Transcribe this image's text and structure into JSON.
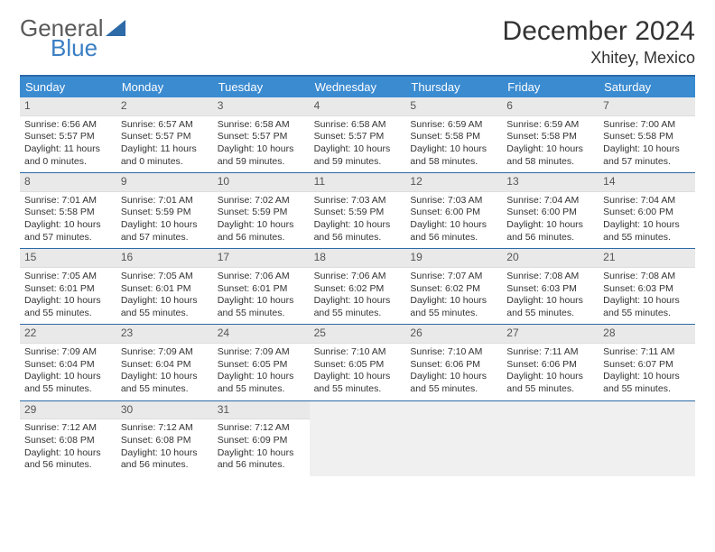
{
  "logo": {
    "text1": "General",
    "text2": "Blue"
  },
  "title": "December 2024",
  "subtitle": "Xhitey, Mexico",
  "dow": [
    "Sunday",
    "Monday",
    "Tuesday",
    "Wednesday",
    "Thursday",
    "Friday",
    "Saturday"
  ],
  "colors": {
    "header_bar": "#3b8bd1",
    "week_border": "#2d6aa8",
    "daynum_bg": "#e9e9e9",
    "logo_gray": "#5a5a5a",
    "logo_blue": "#3a7fc4"
  },
  "weeks": [
    [
      {
        "n": "1",
        "sr": "6:56 AM",
        "ss": "5:57 PM",
        "dl": "11 hours and 0 minutes."
      },
      {
        "n": "2",
        "sr": "6:57 AM",
        "ss": "5:57 PM",
        "dl": "11 hours and 0 minutes."
      },
      {
        "n": "3",
        "sr": "6:58 AM",
        "ss": "5:57 PM",
        "dl": "10 hours and 59 minutes."
      },
      {
        "n": "4",
        "sr": "6:58 AM",
        "ss": "5:57 PM",
        "dl": "10 hours and 59 minutes."
      },
      {
        "n": "5",
        "sr": "6:59 AM",
        "ss": "5:58 PM",
        "dl": "10 hours and 58 minutes."
      },
      {
        "n": "6",
        "sr": "6:59 AM",
        "ss": "5:58 PM",
        "dl": "10 hours and 58 minutes."
      },
      {
        "n": "7",
        "sr": "7:00 AM",
        "ss": "5:58 PM",
        "dl": "10 hours and 57 minutes."
      }
    ],
    [
      {
        "n": "8",
        "sr": "7:01 AM",
        "ss": "5:58 PM",
        "dl": "10 hours and 57 minutes."
      },
      {
        "n": "9",
        "sr": "7:01 AM",
        "ss": "5:59 PM",
        "dl": "10 hours and 57 minutes."
      },
      {
        "n": "10",
        "sr": "7:02 AM",
        "ss": "5:59 PM",
        "dl": "10 hours and 56 minutes."
      },
      {
        "n": "11",
        "sr": "7:03 AM",
        "ss": "5:59 PM",
        "dl": "10 hours and 56 minutes."
      },
      {
        "n": "12",
        "sr": "7:03 AM",
        "ss": "6:00 PM",
        "dl": "10 hours and 56 minutes."
      },
      {
        "n": "13",
        "sr": "7:04 AM",
        "ss": "6:00 PM",
        "dl": "10 hours and 56 minutes."
      },
      {
        "n": "14",
        "sr": "7:04 AM",
        "ss": "6:00 PM",
        "dl": "10 hours and 55 minutes."
      }
    ],
    [
      {
        "n": "15",
        "sr": "7:05 AM",
        "ss": "6:01 PM",
        "dl": "10 hours and 55 minutes."
      },
      {
        "n": "16",
        "sr": "7:05 AM",
        "ss": "6:01 PM",
        "dl": "10 hours and 55 minutes."
      },
      {
        "n": "17",
        "sr": "7:06 AM",
        "ss": "6:01 PM",
        "dl": "10 hours and 55 minutes."
      },
      {
        "n": "18",
        "sr": "7:06 AM",
        "ss": "6:02 PM",
        "dl": "10 hours and 55 minutes."
      },
      {
        "n": "19",
        "sr": "7:07 AM",
        "ss": "6:02 PM",
        "dl": "10 hours and 55 minutes."
      },
      {
        "n": "20",
        "sr": "7:08 AM",
        "ss": "6:03 PM",
        "dl": "10 hours and 55 minutes."
      },
      {
        "n": "21",
        "sr": "7:08 AM",
        "ss": "6:03 PM",
        "dl": "10 hours and 55 minutes."
      }
    ],
    [
      {
        "n": "22",
        "sr": "7:09 AM",
        "ss": "6:04 PM",
        "dl": "10 hours and 55 minutes."
      },
      {
        "n": "23",
        "sr": "7:09 AM",
        "ss": "6:04 PM",
        "dl": "10 hours and 55 minutes."
      },
      {
        "n": "24",
        "sr": "7:09 AM",
        "ss": "6:05 PM",
        "dl": "10 hours and 55 minutes."
      },
      {
        "n": "25",
        "sr": "7:10 AM",
        "ss": "6:05 PM",
        "dl": "10 hours and 55 minutes."
      },
      {
        "n": "26",
        "sr": "7:10 AM",
        "ss": "6:06 PM",
        "dl": "10 hours and 55 minutes."
      },
      {
        "n": "27",
        "sr": "7:11 AM",
        "ss": "6:06 PM",
        "dl": "10 hours and 55 minutes."
      },
      {
        "n": "28",
        "sr": "7:11 AM",
        "ss": "6:07 PM",
        "dl": "10 hours and 55 minutes."
      }
    ],
    [
      {
        "n": "29",
        "sr": "7:12 AM",
        "ss": "6:08 PM",
        "dl": "10 hours and 56 minutes."
      },
      {
        "n": "30",
        "sr": "7:12 AM",
        "ss": "6:08 PM",
        "dl": "10 hours and 56 minutes."
      },
      {
        "n": "31",
        "sr": "7:12 AM",
        "ss": "6:09 PM",
        "dl": "10 hours and 56 minutes."
      },
      null,
      null,
      null,
      null
    ]
  ],
  "labels": {
    "sunrise": "Sunrise:",
    "sunset": "Sunset:",
    "daylight": "Daylight:"
  }
}
